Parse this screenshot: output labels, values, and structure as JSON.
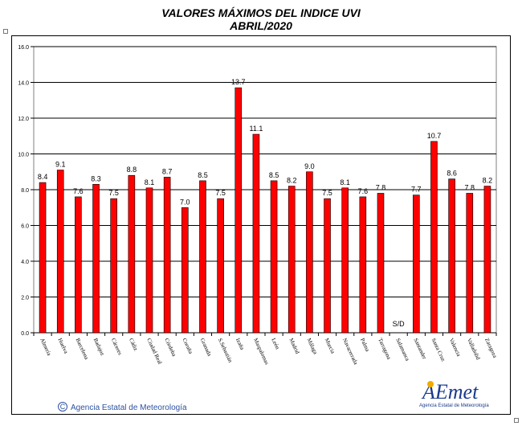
{
  "header": {
    "title": "VALORES MÁXIMOS DEL INDICE UVI",
    "subtitle": "ABRIL/2020"
  },
  "footer": {
    "agency": "Agencia Estatal de Meteorología",
    "copyright_symbol": "C",
    "logo_text": "AEmet",
    "logo_subtitle": "Agencia Estatal de Meteorología"
  },
  "colors": {
    "bar": "#ff0000",
    "bar_stroke": "#000000",
    "grid": "#000000",
    "plot_border": "#808080",
    "footer_text": "#2c52a0"
  },
  "chart_data": {
    "type": "bar",
    "title": "VALORES MÁXIMOS DEL INDICE UVI",
    "subtitle": "ABRIL/2020",
    "ylim": [
      0,
      16
    ],
    "yticks": [
      "0.0",
      "2.0",
      "4.0",
      "6.0",
      "8.0",
      "10.0",
      "12.0",
      "14.0",
      "16.0"
    ],
    "grid": true,
    "categories": [
      "Almería",
      "Huelva",
      "Barcelona",
      "Badajoz",
      "Cáceres",
      "Cádiz",
      "Ciudad Real",
      "Córdoba",
      "Coruña",
      "Granada",
      "S.Sebastián",
      "Izaña",
      "Maspalomas",
      "León",
      "Madrid",
      "Málaga",
      "Murcia",
      "Navacerrada",
      "Palma",
      "Tarragona",
      "Salamanca",
      "Santander",
      "Santa Cruz",
      "Valencia",
      "Valladolid",
      "Zaragoza"
    ],
    "values": [
      8.4,
      9.1,
      7.6,
      8.3,
      7.5,
      8.8,
      8.1,
      8.7,
      7.0,
      8.5,
      7.5,
      13.7,
      11.1,
      8.5,
      8.2,
      9.0,
      7.5,
      8.1,
      7.6,
      7.8,
      null,
      7.7,
      10.7,
      8.6,
      7.8,
      8.2
    ],
    "labels": [
      "8.4",
      "9.1",
      "7.6",
      "8.3",
      "7.5",
      "8.8",
      "8.1",
      "8.7",
      "7.0",
      "8.5",
      "7.5",
      "13.7",
      "11.1",
      "8.5",
      "8.2",
      "9.0",
      "7.5",
      "8.1",
      "7.6",
      "7.8",
      "S/D",
      "7.7",
      "10.7",
      "8.6",
      "7.8",
      "8.2"
    ]
  }
}
